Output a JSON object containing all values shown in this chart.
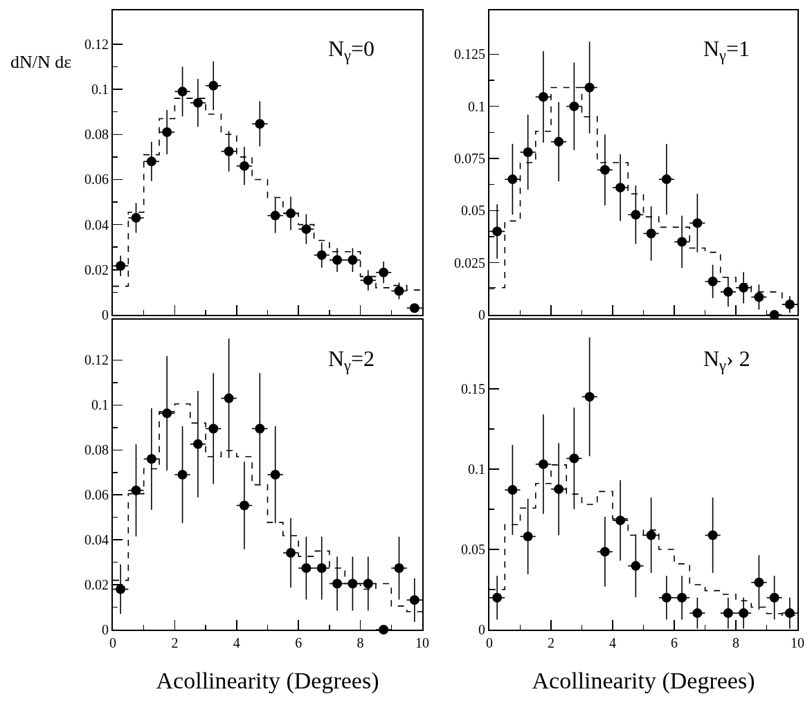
{
  "chart_data": [
    {
      "type": "scatter",
      "ylabel": "dN/N dε",
      "annotations": [
        "N$_{γ}$=0"
      ],
      "xlim": [
        0,
        10
      ],
      "xticks": [
        0,
        2,
        4,
        6,
        8,
        10
      ],
      "ylim": [
        0,
        0.135
      ],
      "yticks": [
        0,
        0.02,
        0.04,
        0.06,
        0.08,
        0.1,
        0.12
      ],
      "tick_labels": "y",
      "marker": "circle",
      "x": [
        0.25,
        0.75,
        1.25,
        1.75,
        2.25,
        2.75,
        3.25,
        3.75,
        4.25,
        4.75,
        5.25,
        5.75,
        6.25,
        6.75,
        7.25,
        7.75,
        8.25,
        8.75,
        9.25,
        9.75
      ],
      "series": [
        {
          "type": "scatter",
          "color": "#000000",
          "values": [
            0.0217,
            0.043,
            0.068,
            0.081,
            0.099,
            0.094,
            0.1016,
            0.0725,
            0.066,
            0.0847,
            0.044,
            0.045,
            0.038,
            0.0265,
            0.0243,
            0.0243,
            0.0153,
            0.0188,
            0.0106,
            0.003
          ],
          "errors": [
            0.0045,
            0.0066,
            0.0087,
            0.0098,
            0.011,
            0.0106,
            0.0108,
            0.009,
            0.0085,
            0.01,
            0.0077,
            0.0074,
            0.0066,
            0.0056,
            0.0053,
            0.0053,
            0.0045,
            0.0048,
            0.0037,
            null
          ],
          "xerrors": [
            0.25,
            0.25,
            0.25,
            0.25,
            0.25,
            0.25,
            0.25,
            0.25,
            0.25,
            0.25,
            0.25,
            0.25,
            0.25,
            0.25,
            0.25,
            0.25,
            0.25,
            0.25,
            0.25,
            0.25
          ]
        },
        {
          "type": "histogram",
          "color": "#000000",
          "line_style": "dashed",
          "bins": [
            0,
            0.5,
            1,
            1.5,
            2,
            2.5,
            3,
            3.5,
            4,
            4.5,
            5,
            5.5,
            6,
            6.5,
            7,
            7.5,
            8,
            8.5,
            9,
            9.5,
            10
          ],
          "values": [
            0.0127,
            0.0455,
            0.071,
            0.087,
            0.096,
            0.096,
            0.089,
            0.08,
            0.07,
            0.06,
            0.052,
            0.045,
            0.04,
            0.033,
            0.028,
            0.028,
            0.017,
            0.012,
            0.013,
            0.011
          ]
        }
      ]
    },
    {
      "type": "scatter",
      "annotations": [
        "N$_{γ}$=1"
      ],
      "xlim": [
        0,
        10
      ],
      "xticks": [
        0,
        2,
        4,
        6,
        8,
        10
      ],
      "ylim": [
        0,
        0.146
      ],
      "yticks": [
        0,
        0.025,
        0.05,
        0.075,
        0.1,
        0.125
      ],
      "tick_labels": "y",
      "marker": "circle",
      "x": [
        0.25,
        0.75,
        1.25,
        1.75,
        2.25,
        2.75,
        3.25,
        3.75,
        4.25,
        4.75,
        5.25,
        5.75,
        6.25,
        6.75,
        7.25,
        7.75,
        8.25,
        8.75,
        9.25,
        9.75
      ],
      "series": [
        {
          "type": "scatter",
          "color": "#000000",
          "values": [
            0.04,
            0.065,
            0.078,
            0.1045,
            0.083,
            0.1,
            0.109,
            0.0695,
            0.061,
            0.048,
            0.039,
            0.065,
            0.035,
            0.044,
            0.016,
            0.011,
            0.013,
            0.0085,
            0,
            0.005
          ],
          "errors": [
            0.013,
            0.017,
            0.018,
            0.022,
            0.019,
            0.021,
            0.022,
            0.017,
            0.016,
            0.014,
            0.013,
            0.017,
            0.0125,
            0.014,
            0.008,
            0.007,
            0.0075,
            0.006,
            null,
            0.004
          ],
          "xerrors": [
            0.25,
            0.25,
            0.25,
            0.25,
            0.25,
            0.25,
            0.25,
            0.25,
            0.25,
            0.25,
            0.25,
            0.25,
            0.25,
            0.25,
            0.25,
            0.25,
            0.25,
            0.25,
            0.25,
            0.25
          ]
        },
        {
          "type": "histogram",
          "color": "#000000",
          "line_style": "dashed",
          "bins": [
            0,
            0.5,
            1,
            1.5,
            2,
            2.5,
            3,
            3.5,
            4,
            4.5,
            5,
            5.5,
            6,
            6.5,
            7,
            7.5,
            8,
            8.5,
            9,
            9.5,
            10
          ],
          "values": [
            0.013,
            0.045,
            0.073,
            0.088,
            0.109,
            0.109,
            0.095,
            0.073,
            0.073,
            0.058,
            0.047,
            0.042,
            0.042,
            0.032,
            0.03,
            0.018,
            0.015,
            0.011,
            0.011,
            0.005
          ]
        }
      ]
    },
    {
      "type": "scatter",
      "xlabel": "Acollinearity (Degrees)",
      "annotations": [
        "N$_{γ}$=2"
      ],
      "xlim": [
        0,
        10
      ],
      "xticks": [
        0,
        2,
        4,
        6,
        8,
        10
      ],
      "ylim": [
        0,
        0.138
      ],
      "yticks": [
        0,
        0.02,
        0.04,
        0.06,
        0.08,
        0.1,
        0.12
      ],
      "marker": "circle",
      "x": [
        0.25,
        0.75,
        1.25,
        1.75,
        2.25,
        2.75,
        3.25,
        3.75,
        4.25,
        4.75,
        5.25,
        5.75,
        6.25,
        6.75,
        7.25,
        7.75,
        8.25,
        8.75,
        9.25,
        9.75
      ],
      "series": [
        {
          "type": "scatter",
          "color": "#000000",
          "values": [
            0.018,
            0.062,
            0.076,
            0.0963,
            0.069,
            0.0826,
            0.0895,
            0.103,
            0.0553,
            0.0895,
            0.069,
            0.0342,
            0.0274,
            0.0274,
            0.0205,
            0.0205,
            0.0205,
            0,
            0.0274,
            0.0132
          ],
          "errors": [
            0.011,
            0.0205,
            0.0226,
            0.0255,
            0.0216,
            0.0237,
            0.0247,
            0.0266,
            0.0195,
            0.0247,
            0.0216,
            0.0155,
            0.014,
            0.014,
            0.012,
            0.012,
            0.012,
            null,
            0.014,
            0.0097
          ],
          "xerrors": [
            0.25,
            0.25,
            0.25,
            0.25,
            0.25,
            0.25,
            0.25,
            0.25,
            0.25,
            0.25,
            0.25,
            0.25,
            0.25,
            0.25,
            0.25,
            0.25,
            0.25,
            0.25,
            0.25,
            0.25
          ]
        },
        {
          "type": "histogram",
          "color": "#000000",
          "line_style": "dashed",
          "bins": [
            0,
            0.5,
            1,
            1.5,
            2,
            2.5,
            3,
            3.5,
            4,
            4.5,
            5,
            5.5,
            6,
            6.5,
            7,
            7.5,
            8,
            8.5,
            9,
            9.5,
            10
          ],
          "values": [
            0.022,
            0.0605,
            0.0716,
            0.097,
            0.1005,
            0.092,
            0.077,
            0.0797,
            0.077,
            0.0645,
            0.0477,
            0.0418,
            0.0326,
            0.035,
            0.0274,
            0.0205,
            0.018,
            0.0205,
            0.0105,
            0.008
          ]
        }
      ]
    },
    {
      "type": "scatter",
      "xlabel": "Acollinearity (Degrees)",
      "annotations": [
        "N$_{γ}$› 2"
      ],
      "xlim": [
        0,
        10
      ],
      "xticks": [
        0,
        2,
        4,
        6,
        8,
        10
      ],
      "ylim": [
        0,
        0.193
      ],
      "yticks": [
        0,
        0.05,
        0.1,
        0.15
      ],
      "marker": "circle",
      "x": [
        0.25,
        0.75,
        1.25,
        1.75,
        2.25,
        2.75,
        3.25,
        3.75,
        4.25,
        4.75,
        5.25,
        5.75,
        6.25,
        6.75,
        7.25,
        7.75,
        8.25,
        8.75,
        9.25,
        9.75
      ],
      "series": [
        {
          "type": "scatter",
          "color": "#000000",
          "values": [
            0.0199,
            0.087,
            0.058,
            0.103,
            0.0875,
            0.1066,
            0.145,
            0.0485,
            0.068,
            0.0397,
            0.0588,
            0.0199,
            0.0199,
            0.0103,
            0.0588,
            0.0103,
            0.0103,
            0.0294,
            0.0199,
            0.0103
          ],
          "errors": [
            0.0136,
            0.028,
            0.0235,
            0.031,
            0.0287,
            0.0316,
            0.037,
            0.0217,
            0.025,
            0.0195,
            0.0235,
            0.0136,
            0.0136,
            0.0096,
            0.0235,
            0.0096,
            0.0096,
            0.017,
            0.0136,
            0.0096
          ],
          "xerrors": [
            0.25,
            0.25,
            0.25,
            0.25,
            0.25,
            0.25,
            0.25,
            0.25,
            0.25,
            0.25,
            0.25,
            0.25,
            0.25,
            0.25,
            0.25,
            0.25,
            0.25,
            0.25,
            0.25,
            0.25
          ]
        },
        {
          "type": "histogram",
          "color": "#000000",
          "line_style": "dashed",
          "bins": [
            0,
            0.5,
            1,
            1.5,
            2,
            2.5,
            3,
            3.5,
            4,
            4.5,
            5,
            5.5,
            6,
            6.5,
            7,
            7.5,
            8,
            8.5,
            9,
            9.5,
            10
          ],
          "values": [
            0.025,
            0.0654,
            0.0757,
            0.091,
            0.1026,
            0.0844,
            0.078,
            0.086,
            0.069,
            0.0588,
            0.062,
            0.05,
            0.041,
            0.028,
            0.0243,
            0.022,
            0.018,
            0.014,
            0.01,
            0.009
          ]
        }
      ]
    }
  ]
}
